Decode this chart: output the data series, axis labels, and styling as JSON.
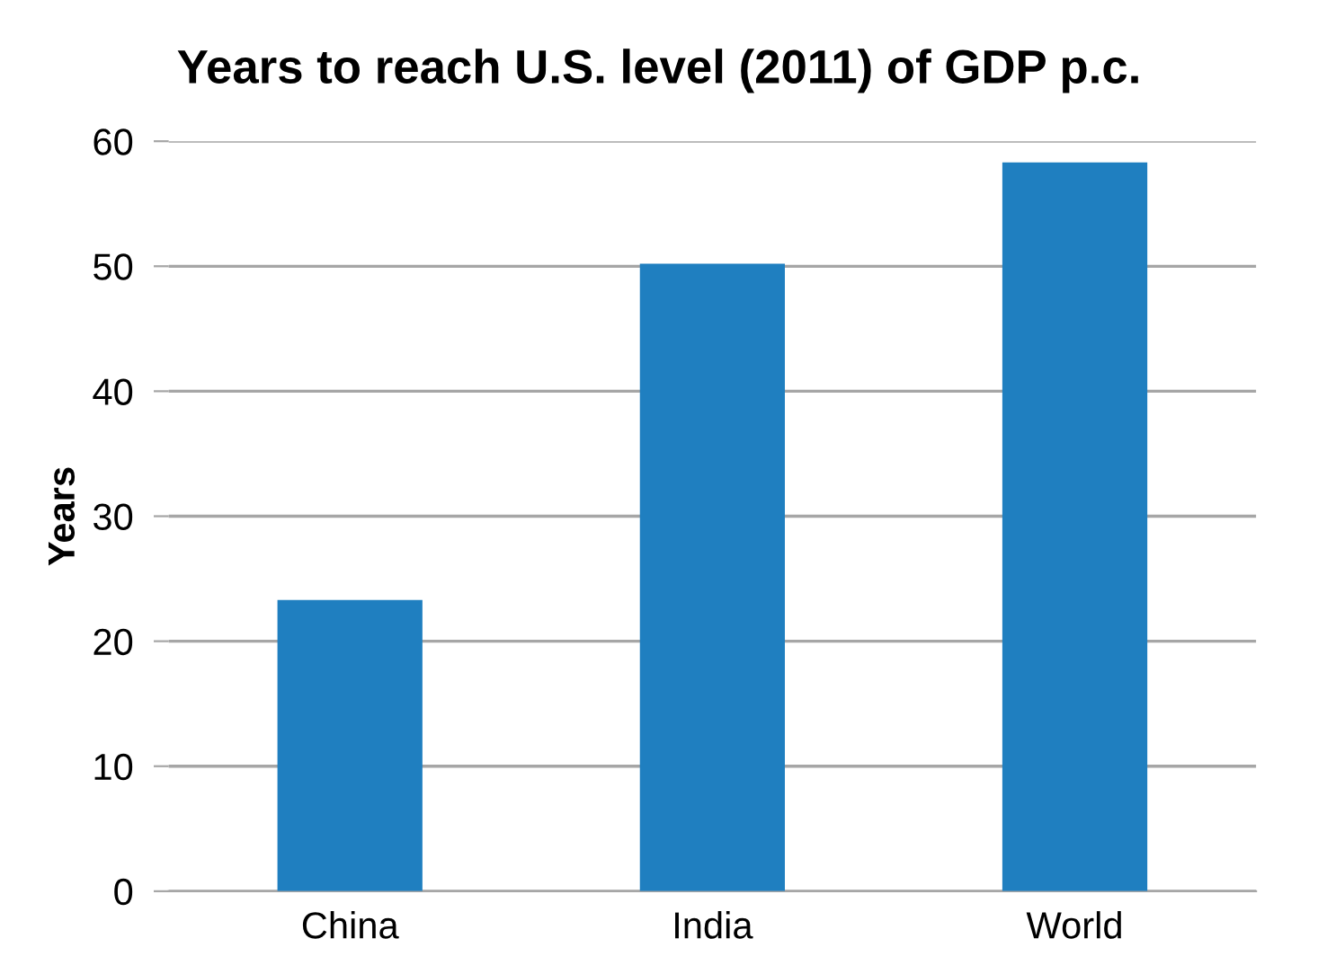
{
  "chart_data": {
    "type": "bar",
    "title": "Years to reach U.S. level (2011) of GDP p.c.",
    "ylabel": "Years",
    "categories": [
      "China",
      "India",
      "World"
    ],
    "values": [
      23.3,
      50.2,
      58.3
    ],
    "color": "#1f7fc0",
    "ylim": [
      0,
      60
    ],
    "yticks": [
      0,
      10,
      20,
      30,
      40,
      50,
      60
    ],
    "grid": "y",
    "legend": false
  }
}
